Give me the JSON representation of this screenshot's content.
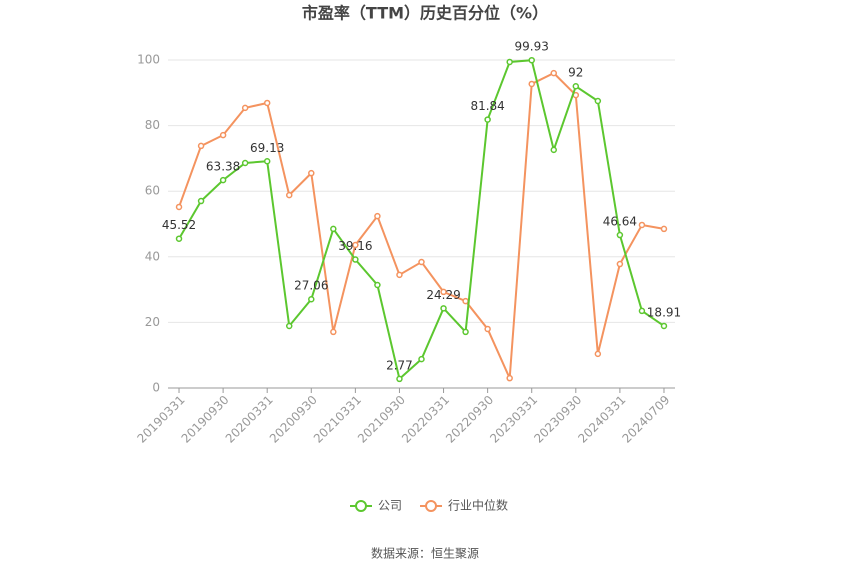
{
  "chart_data": {
    "type": "line",
    "title": "市盈率（TTM）历史百分位（%）",
    "source": "数据来源：恒生聚源",
    "categories": [
      "20190331",
      null,
      "20190930",
      null,
      "20200331",
      null,
      "20200930",
      null,
      "20210331",
      null,
      "20210930",
      null,
      "20220331",
      null,
      "20220930",
      null,
      "20230331",
      null,
      "20230930",
      null,
      "20240331",
      null,
      "20240709"
    ],
    "series": [
      {
        "name": "公司",
        "color": "#5cc72f",
        "values": [
          45.52,
          57.0,
          63.38,
          68.6,
          69.13,
          18.9,
          27.06,
          48.5,
          39.16,
          31.4,
          2.77,
          8.8,
          24.29,
          17.1,
          81.84,
          99.4,
          99.93,
          72.6,
          92.0,
          87.5,
          46.64,
          23.5,
          18.91
        ]
      },
      {
        "name": "行业中位数",
        "color": "#f4935f",
        "values": [
          55.2,
          73.8,
          77.1,
          85.4,
          86.9,
          58.8,
          65.5,
          17.1,
          43.6,
          52.4,
          34.5,
          38.4,
          29.3,
          26.5,
          18.0,
          3.0,
          92.7,
          96.0,
          89.3,
          10.4,
          37.8,
          49.7,
          48.5
        ]
      }
    ],
    "ylim": [
      0,
      100
    ],
    "yticks": [
      0,
      20,
      40,
      60,
      80,
      100
    ],
    "grid": true
  }
}
